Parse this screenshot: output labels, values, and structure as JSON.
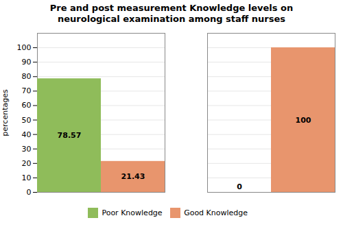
{
  "chart_data": {
    "type": "bar",
    "title": "Pre and post measurement Knowledge levels on\nneurological examination among staff nurses",
    "categories": [
      null,
      null
    ],
    "series": [
      {
        "name": "Poor Knowledge",
        "color": "#8FBC5A",
        "values": [
          78.57,
          0
        ]
      },
      {
        "name": "Good Knowledge",
        "color": "#E8956D",
        "values": [
          21.43,
          100
        ]
      }
    ],
    "y_label": "percentages",
    "ylim": [
      0,
      110
    ],
    "yticks": [
      0,
      10,
      20,
      30,
      40,
      50,
      60,
      70,
      80,
      90,
      100
    ],
    "grid": true,
    "legend": "bottom",
    "data_labels": true,
    "tick_labels": "y"
  }
}
